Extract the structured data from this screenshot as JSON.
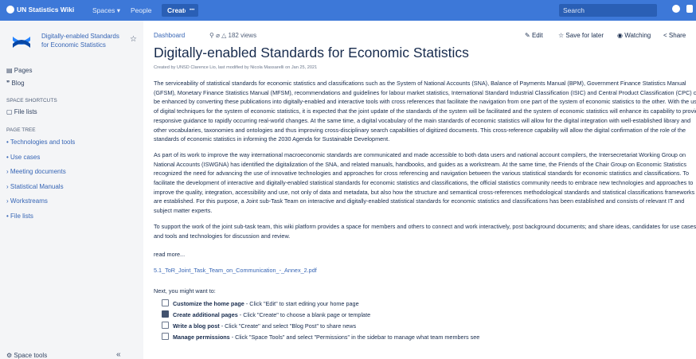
{
  "topbar": {
    "logo": "UN Statistics Wiki",
    "nav": [
      "Spaces",
      "People"
    ],
    "create": "Create",
    "more": "•••",
    "search": "Search"
  },
  "sidebar": {
    "space_name": "Digitally-enabled Standards for Economic Statistics",
    "main_items": [
      "Pages",
      "Blog"
    ],
    "shortcuts_heading": "SPACE SHORTCUTS",
    "shortcuts": [
      "File lists"
    ],
    "tree_heading": "PAGE TREE",
    "tree": [
      {
        "label": "Technologies and tools",
        "expandable": false
      },
      {
        "label": "Use cases",
        "expandable": false
      },
      {
        "label": "Meeting documents",
        "expandable": true
      },
      {
        "label": "Statistical Manuals",
        "expandable": true
      },
      {
        "label": "Workstreams",
        "expandable": true
      },
      {
        "label": "File lists",
        "expandable": false
      }
    ],
    "footer": "Space tools"
  },
  "page": {
    "breadcrumb": "Dashboard",
    "views": "182 views",
    "actions": [
      "Edit",
      "Save for later",
      "Watching",
      "Share"
    ],
    "title": "Digitally-enabled Standards for Economic Statistics",
    "byline": "Created by UNSD Clarence Lio, last modified by Nicola Massarelli on Jan 25, 2021",
    "paragraphs": [
      "The serviceability of statistical standards for economic statistics and classifications such as the System of National Accounts (SNA), Balance of Payments Manual (BPM), Government Finance Statistics Manual (GFSM), Monetary Finance Statistics Manual (MFSM), recommendations and guidelines for labour market statistics, International Standard Industrial Classification (ISIC) and Central Product Classification (CPC) can be enhanced by converting these publications into digitally-enabled and interactive tools with cross references that facilitate the navigation from one part of the system of economic statistics to the other. With the use of digital techniques for the system of economic statistics, it is expected that the joint update of the standards of the system will be facilitated and the system of economic statistics will enhance its capability to provide responsive guidance to rapidly occurring real-world changes. At the same time, a digital vocabulary of the main standards of economic statistics will allow for the digital integration with well-established library and other vocabularies, taxonomies and ontologies and thus improving cross-disciplinary search capabilities of digitized documents. This cross-reference capability will allow the digital confirmation of the role of the standards of economic statistics in informing the 2030 Agenda for Sustainable Development.",
      "As part of its work to improve the way international macroeconomic standards are communicated and made accessible to both data users and national account compilers, the Intersecretariat Working Group on National Accounts (ISWGNA) has identified the digitalization of the SNA, and related manuals, handbooks, and guides as a workstream. At the same time, the Friends of the Chair Group on Economic Statistics recognized the need for advancing the use of innovative technologies and approaches for cross referencing and navigation between the various statistical standards for economic statistics and classifications. To facilitate the development of interactive and digitally-enabled statistical standards for economic statistics and classifications, the official statistics community needs to embrace new technologies and approaches to improve the quality, integration, accessibility and use, not only of data and metadata, but also how the structure and semantical cross-references methodological standards and statistical classifications frameworks are established. For this purpose, a Joint sub-Task Team on interactive and digitally-enabled statistical standards for economic statistics and classifications has been established and consists of relevant IT and subject matter experts.",
      "To support the work of the joint sub-task team, this wiki platform provides a space for members and others to connect and work interactively, post background documents; and share ideas, candidates for use cases, and tools and technologies for discussion and review."
    ],
    "read_more": "read more...",
    "attachment": "5.1_ToR_Joint_Task_Team_on_Communication_-_Annex_2.pdf",
    "next_heading": "Next, you might want to:",
    "tasks": [
      {
        "title": "Customize the home page",
        "text": " - Click \"Edit\" to start editing your home page",
        "checked": false
      },
      {
        "title": "Create additional pages",
        "text": " - Click \"Create\" to choose a blank page or template",
        "checked": true
      },
      {
        "title": "Write a blog post",
        "text": " - Click \"Create\" and select \"Blog Post\" to share news",
        "checked": false
      },
      {
        "title": "Manage permissions",
        "text": " - Click \"Space Tools\" and select \"Permissions\" in the sidebar to manage what team members see",
        "checked": false
      }
    ]
  }
}
